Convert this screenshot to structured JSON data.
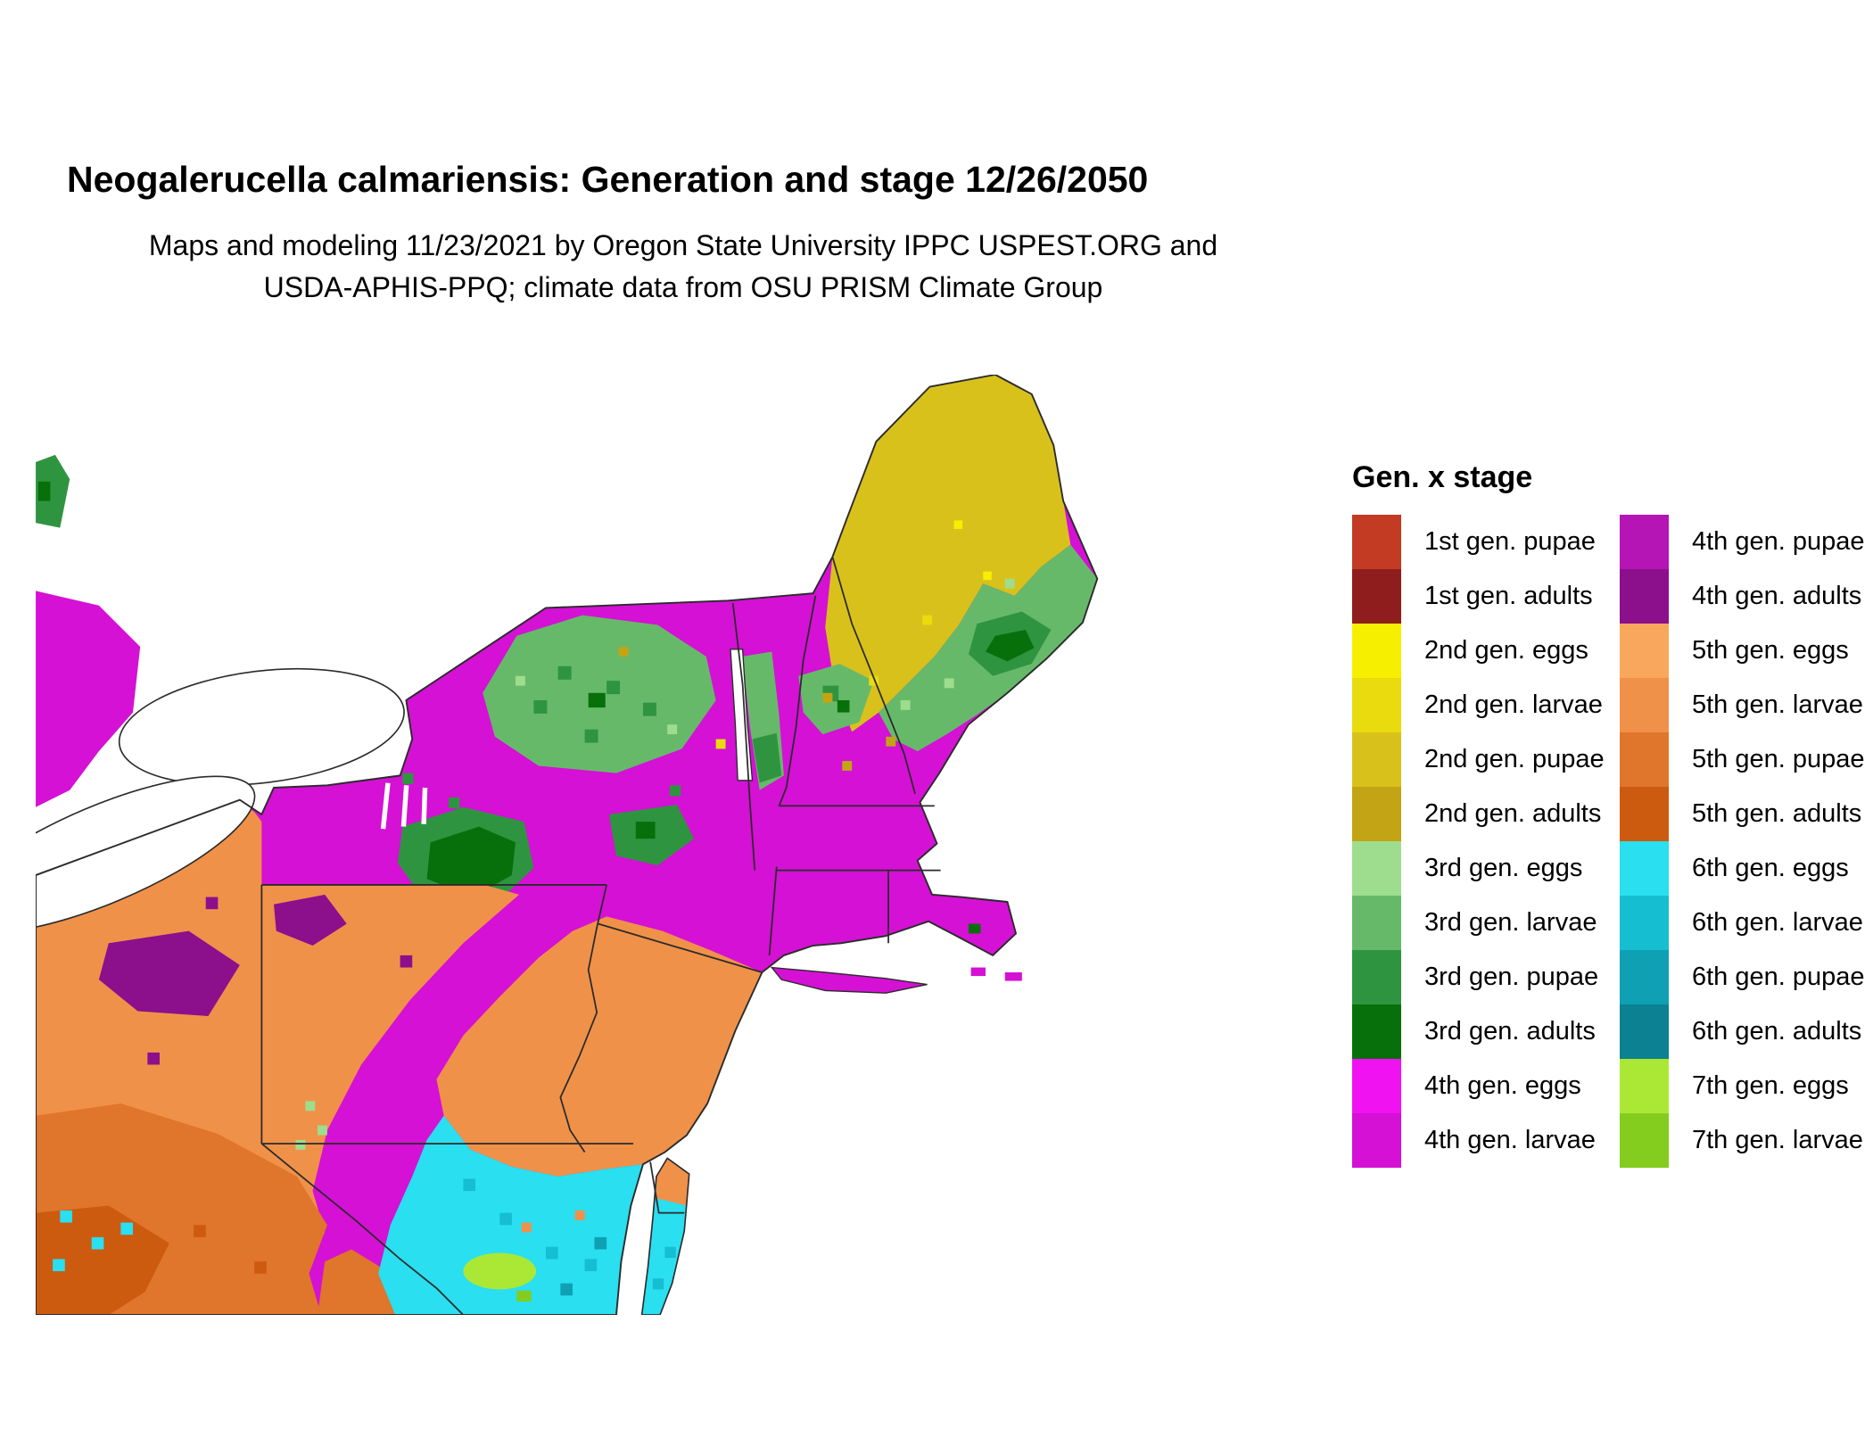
{
  "page": {
    "title": "Neogalerucella calmariensis: Generation and stage 12/26/2050",
    "subtitle_lines": [
      "Maps and modeling 11/23/2021 by Oregon State University IPPC USPEST.ORG and",
      "USDA-APHIS-PPQ; climate data from OSU PRISM Climate Group"
    ]
  },
  "palette": {
    "g1_pupae": "#c23b22",
    "g1_adults": "#8f1d1d",
    "g2_eggs": "#f7ef00",
    "g2_larvae": "#eadb0e",
    "g2_pupae": "#d9c11c",
    "g2_adults": "#c2a414",
    "g3_eggs": "#9edd8e",
    "g3_larvae": "#67b96a",
    "g3_pupae": "#2f9440",
    "g3_adults": "#07700a",
    "g4_eggs": "#f112f1",
    "g4_larvae": "#d411d4",
    "g4_pupae": "#b515b5",
    "g4_adults": "#8c0f8c",
    "g5_eggs": "#f9a75c",
    "g5_larvae": "#f0914a",
    "g5_pupae": "#e0752c",
    "g5_adults": "#cc5b10",
    "g6_eggs": "#29dff0",
    "g6_larvae": "#16bed2",
    "g6_pupae": "#0fa0b4",
    "g6_adults": "#0c8191",
    "g7_eggs": "#abe836",
    "g7_larvae": "#84cc1d"
  },
  "legend": {
    "title": "Gen. x stage",
    "columns": [
      [
        {
          "label": "1st gen. pupae",
          "key": "g1_pupae"
        },
        {
          "label": "1st gen. adults",
          "key": "g1_adults"
        },
        {
          "label": "2nd gen. eggs",
          "key": "g2_eggs"
        },
        {
          "label": "2nd gen. larvae",
          "key": "g2_larvae"
        },
        {
          "label": "2nd gen. pupae",
          "key": "g2_pupae"
        },
        {
          "label": "2nd gen. adults",
          "key": "g2_adults"
        },
        {
          "label": "3rd gen. eggs",
          "key": "g3_eggs"
        },
        {
          "label": "3rd gen. larvae",
          "key": "g3_larvae"
        },
        {
          "label": "3rd gen. pupae",
          "key": "g3_pupae"
        },
        {
          "label": "3rd gen. adults",
          "key": "g3_adults"
        },
        {
          "label": "4th gen. eggs",
          "key": "g4_eggs"
        },
        {
          "label": "4th gen. larvae",
          "key": "g4_larvae"
        }
      ],
      [
        {
          "label": "4th gen. pupae",
          "key": "g4_pupae"
        },
        {
          "label": "4th gen. adults",
          "key": "g4_adults"
        },
        {
          "label": "5th gen. eggs",
          "key": "g5_eggs"
        },
        {
          "label": "5th gen. larvae",
          "key": "g5_larvae"
        },
        {
          "label": "5th gen. pupae",
          "key": "g5_pupae"
        },
        {
          "label": "5th gen. adults",
          "key": "g5_adults"
        },
        {
          "label": "6th gen. eggs",
          "key": "g6_eggs"
        },
        {
          "label": "6th gen. larvae",
          "key": "g6_larvae"
        },
        {
          "label": "6th gen. pupae",
          "key": "g6_pupae"
        },
        {
          "label": "6th gen. adults",
          "key": "g6_adults"
        },
        {
          "label": "7th gen. eggs",
          "key": "g7_eggs"
        },
        {
          "label": "7th gen. larvae",
          "key": "g7_larvae"
        }
      ]
    ]
  },
  "map": {
    "description": "Raster map of insect generation and life stage across the northeastern United States on 12/26/2050",
    "regions": [
      {
        "area": "Northern Maine",
        "value": "2nd gen. pupae"
      },
      {
        "area": "Central and eastern Maine",
        "value": "3rd gen. larvae"
      },
      {
        "area": "Adirondacks, Green Mountains, White Mountains, Catskills",
        "value": "3rd gen. pupae / 3rd gen. adults"
      },
      {
        "area": "New York, southern New England, southern Maine coast",
        "value": "4th gen. larvae"
      },
      {
        "area": "Northwest Pennsylvania highlands",
        "value": "4th gen. adults"
      },
      {
        "area": "Pennsylvania, New Jersey and Maryland lowlands",
        "value": "5th gen. eggs / 5th gen. larvae"
      },
      {
        "area": "Lower southwest corner",
        "value": "5th gen. pupae / 5th gen. adults"
      },
      {
        "area": "Chesapeake Bay and southeast coastal plain",
        "value": "6th gen. eggs / 6th gen. larvae"
      },
      {
        "area": "Small far-southeast patch",
        "value": "7th gen. eggs"
      }
    ]
  }
}
